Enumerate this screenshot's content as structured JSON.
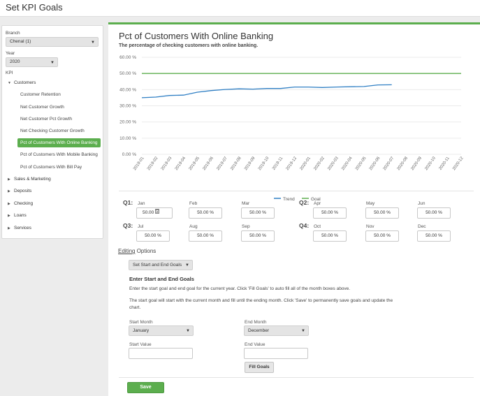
{
  "page": {
    "title": "Set KPI Goals"
  },
  "colors": {
    "accent": "#5cae4e",
    "trend": "#2f7fc4",
    "goal": "#5cae4e"
  },
  "sidebar": {
    "branch_label": "Branch",
    "branch_value": "Chenal (1)",
    "year_label": "Year",
    "year_value": "2020",
    "kpi_label": "KPI",
    "tree": [
      {
        "label": "Customers",
        "expanded": true,
        "children": [
          {
            "label": "Customer Retention"
          },
          {
            "label": "Net Customer Growth"
          },
          {
            "label": "Net Customer Pct Growth"
          },
          {
            "label": "Net Checking Customer Growth"
          },
          {
            "label": "Pct of Customers With Online Banking",
            "active": true
          },
          {
            "label": "Pct of Customers With Mobile Banking"
          },
          {
            "label": "Pct of Customers With Bill Pay"
          }
        ]
      },
      {
        "label": "Sales & Marketing",
        "expanded": false
      },
      {
        "label": "Deposits",
        "expanded": false
      },
      {
        "label": "Checking",
        "expanded": false
      },
      {
        "label": "Loans",
        "expanded": false
      },
      {
        "label": "Services",
        "expanded": false
      }
    ]
  },
  "main": {
    "title": "Pct of Customers With Online Banking",
    "description": "The percentage of checking customers with online banking."
  },
  "chart_data": {
    "type": "line",
    "x": [
      "2019-01",
      "2019-02",
      "2019-03",
      "2019-04",
      "2019-05",
      "2019-06",
      "2019-07",
      "2019-08",
      "2019-09",
      "2019-10",
      "2019-11",
      "2019-12",
      "2020-01",
      "2020-02",
      "2020-03",
      "2020-04",
      "2020-05",
      "2020-06",
      "2020-07",
      "2020-08",
      "2020-09",
      "2020-10",
      "2020-11",
      "2020-12"
    ],
    "y_ticks": [
      "0.00 %",
      "10.00 %",
      "20.00 %",
      "30.00 %",
      "40.00 %",
      "50.00 %",
      "60.00 %"
    ],
    "ylim": [
      0,
      60
    ],
    "grid": true,
    "legend_position": "bottom-center",
    "series": [
      {
        "name": "Trend",
        "values": [
          35.0,
          35.4,
          36.4,
          36.6,
          38.4,
          39.4,
          40.1,
          40.5,
          40.3,
          40.7,
          40.7,
          41.6,
          41.6,
          41.3,
          41.6,
          41.8,
          41.9,
          42.9,
          43.0,
          null,
          null,
          null,
          null,
          null
        ]
      },
      {
        "name": "Goal",
        "values": [
          50,
          50,
          50,
          50,
          50,
          50,
          50,
          50,
          50,
          50,
          50,
          50,
          50,
          50,
          50,
          50,
          50,
          50,
          50,
          50,
          50,
          50,
          50,
          50
        ]
      }
    ]
  },
  "quarters": [
    {
      "label": "Q1:",
      "months": [
        {
          "name": "Jan",
          "value": "50.00 %"
        },
        {
          "name": "Feb",
          "value": "50.00 %"
        },
        {
          "name": "Mar",
          "value": "50.00 %"
        }
      ]
    },
    {
      "label": "Q2:",
      "months": [
        {
          "name": "Apr",
          "value": "50.00 %"
        },
        {
          "name": "May",
          "value": "50.00 %"
        },
        {
          "name": "Jun",
          "value": "50.00 %"
        }
      ]
    },
    {
      "label": "Q3:",
      "months": [
        {
          "name": "Jul",
          "value": "50.00 %"
        },
        {
          "name": "Aug",
          "value": "50.00 %"
        },
        {
          "name": "Sep",
          "value": "50.00 %"
        }
      ]
    },
    {
      "label": "Q4:",
      "months": [
        {
          "name": "Oct",
          "value": "50.00 %"
        },
        {
          "name": "Nov",
          "value": "50.00 %"
        },
        {
          "name": "Dec",
          "value": "50.00 %"
        }
      ]
    }
  ],
  "editing": {
    "title_u": "Editing",
    "title_rest": " Options",
    "mode_value": "Set Start and End Goals",
    "subtitle": "Enter Start and End Goals",
    "para1": "Enter the start goal and end goal for the current year. Click 'Fill Goals' to auto fill all of the month boxes above.",
    "para2": "The start goal will start with the current month and fill until the ending month. Click 'Save' to permanently save goals and update the chart.",
    "start_month_label": "Start Month",
    "start_month_value": "January",
    "end_month_label": "End Month",
    "end_month_value": "December",
    "start_value_label": "Start Value",
    "start_value": "",
    "end_value_label": "End Value",
    "end_value": "",
    "fill_label": "Fill Goals",
    "save_label": "Save"
  }
}
